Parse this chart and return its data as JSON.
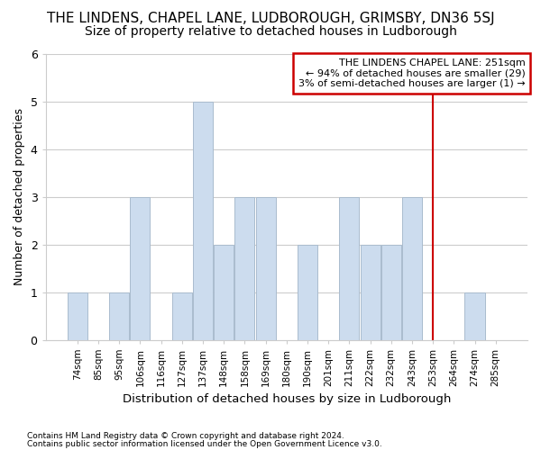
{
  "title1": "THE LINDENS, CHAPEL LANE, LUDBOROUGH, GRIMSBY, DN36 5SJ",
  "title2": "Size of property relative to detached houses in Ludborough",
  "xlabel": "Distribution of detached houses by size in Ludborough",
  "ylabel": "Number of detached properties",
  "footnote1": "Contains HM Land Registry data © Crown copyright and database right 2024.",
  "footnote2": "Contains public sector information licensed under the Open Government Licence v3.0.",
  "categories": [
    "74sqm",
    "85sqm",
    "95sqm",
    "106sqm",
    "116sqm",
    "127sqm",
    "137sqm",
    "148sqm",
    "158sqm",
    "169sqm",
    "180sqm",
    "190sqm",
    "201sqm",
    "211sqm",
    "222sqm",
    "232sqm",
    "243sqm",
    "253sqm",
    "264sqm",
    "274sqm",
    "285sqm"
  ],
  "values": [
    1,
    0,
    1,
    3,
    0,
    1,
    5,
    2,
    3,
    3,
    0,
    2,
    0,
    3,
    2,
    2,
    3,
    0,
    0,
    1,
    0
  ],
  "bar_color": "#ccdcee",
  "bar_edge_color": "#aabcce",
  "vline_x_index": 17,
  "vline_color": "#cc0000",
  "annotation_text": "THE LINDENS CHAPEL LANE: 251sqm\n← 94% of detached houses are smaller (29)\n3% of semi-detached houses are larger (1) →",
  "annotation_box_color": "#cc0000",
  "ylim": [
    0,
    6
  ],
  "yticks": [
    0,
    1,
    2,
    3,
    4,
    5,
    6
  ],
  "grid_color": "#cccccc",
  "background_color": "#ffffff",
  "title1_fontsize": 11,
  "title2_fontsize": 10
}
